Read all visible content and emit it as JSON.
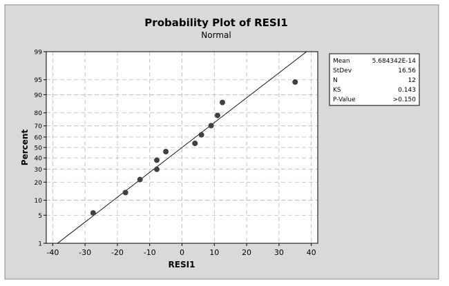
{
  "chart_data": {
    "type": "scatter",
    "title": "Probability Plot of RESI1",
    "subtitle": "Normal",
    "xlabel": "RESI1",
    "ylabel": "Percent",
    "xlim": [
      -42,
      42
    ],
    "ylim_percent": [
      1,
      99
    ],
    "y_scale": "normal-probability",
    "x_ticks": [
      -40,
      -30,
      -20,
      -10,
      0,
      10,
      20,
      30,
      40
    ],
    "y_ticks": [
      1,
      5,
      10,
      20,
      30,
      40,
      50,
      60,
      70,
      80,
      90,
      95,
      99
    ],
    "grid": true,
    "points": [
      {
        "x": -27.5,
        "y": 5.6
      },
      {
        "x": -17.5,
        "y": 13.7
      },
      {
        "x": -13.0,
        "y": 21.8
      },
      {
        "x": -7.8,
        "y": 29.8
      },
      {
        "x": -7.8,
        "y": 37.9
      },
      {
        "x": -5.0,
        "y": 46.0
      },
      {
        "x": 4.0,
        "y": 54.0
      },
      {
        "x": 6.0,
        "y": 62.1
      },
      {
        "x": 9.0,
        "y": 70.2
      },
      {
        "x": 11.0,
        "y": 78.2
      },
      {
        "x": 12.5,
        "y": 86.3
      },
      {
        "x": 35.0,
        "y": 94.4
      }
    ],
    "fit_line": {
      "mean": 5.684342e-14,
      "stdev": 16.56
    },
    "stats": [
      {
        "label": "Mean",
        "value": "5.684342E-14"
      },
      {
        "label": "StDev",
        "value": "16.56"
      },
      {
        "label": "N",
        "value": "12"
      },
      {
        "label": "KS",
        "value": "0.143"
      },
      {
        "label": "P-Value",
        "value": ">0.150"
      }
    ],
    "colors": {
      "points": "#404040",
      "line": "#000000",
      "grid": "#b4b4b4",
      "frame_bg": "#d9d9d9"
    }
  }
}
